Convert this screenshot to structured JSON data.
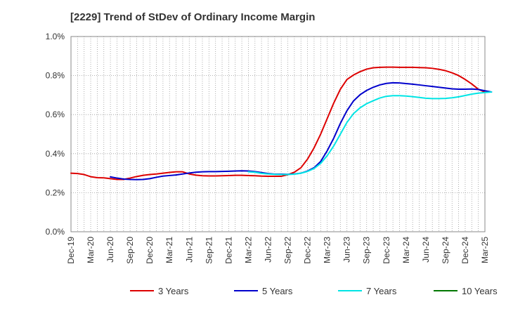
{
  "chart_data": {
    "type": "line",
    "title": "[2229]  Trend of StDev of Ordinary Income Margin",
    "xlabel": "",
    "ylabel": "",
    "ylim": [
      0,
      1.0
    ],
    "y_ticks": [
      "0.0%",
      "0.2%",
      "0.4%",
      "0.6%",
      "0.8%",
      "1.0%"
    ],
    "x_ticks": [
      "Dec-19",
      "Mar-20",
      "Jun-20",
      "Sep-20",
      "Dec-20",
      "Mar-21",
      "Jun-21",
      "Sep-21",
      "Dec-21",
      "Mar-22",
      "Jun-22",
      "Sep-22",
      "Dec-22",
      "Mar-23",
      "Jun-23",
      "Sep-23",
      "Dec-23",
      "Mar-24",
      "Jun-24",
      "Sep-24",
      "Dec-24",
      "Mar-25"
    ],
    "x_unit": "months since Dec-19",
    "grid": true,
    "legend_position": "bottom",
    "series": [
      {
        "name": "3 Years",
        "color": "#dd0000",
        "points": [
          [
            0,
            0.3
          ],
          [
            1,
            0.298
          ],
          [
            2,
            0.293
          ],
          [
            3,
            0.282
          ],
          [
            4,
            0.277
          ],
          [
            5,
            0.276
          ],
          [
            6,
            0.272
          ],
          [
            7,
            0.268
          ],
          [
            8,
            0.268
          ],
          [
            9,
            0.275
          ],
          [
            10,
            0.283
          ],
          [
            11,
            0.289
          ],
          [
            12,
            0.293
          ],
          [
            13,
            0.296
          ],
          [
            14,
            0.3
          ],
          [
            15,
            0.304
          ],
          [
            16,
            0.307
          ],
          [
            17,
            0.307
          ],
          [
            18,
            0.296
          ],
          [
            19,
            0.29
          ],
          [
            20,
            0.287
          ],
          [
            21,
            0.286
          ],
          [
            22,
            0.286
          ],
          [
            23,
            0.287
          ],
          [
            24,
            0.288
          ],
          [
            25,
            0.289
          ],
          [
            26,
            0.289
          ],
          [
            27,
            0.288
          ],
          [
            28,
            0.287
          ],
          [
            29,
            0.285
          ],
          [
            30,
            0.284
          ],
          [
            31,
            0.284
          ],
          [
            32,
            0.284
          ],
          [
            33,
            0.292
          ],
          [
            34,
            0.305
          ],
          [
            35,
            0.328
          ],
          [
            36,
            0.372
          ],
          [
            37,
            0.43
          ],
          [
            38,
            0.5
          ],
          [
            39,
            0.58
          ],
          [
            40,
            0.66
          ],
          [
            41,
            0.73
          ],
          [
            42,
            0.78
          ],
          [
            43,
            0.803
          ],
          [
            44,
            0.82
          ],
          [
            45,
            0.833
          ],
          [
            46,
            0.84
          ],
          [
            47,
            0.842
          ],
          [
            48,
            0.843
          ],
          [
            49,
            0.843
          ],
          [
            50,
            0.842
          ],
          [
            51,
            0.842
          ],
          [
            52,
            0.842
          ],
          [
            53,
            0.841
          ],
          [
            54,
            0.84
          ],
          [
            55,
            0.837
          ],
          [
            56,
            0.832
          ],
          [
            57,
            0.825
          ],
          [
            58,
            0.814
          ],
          [
            59,
            0.8
          ],
          [
            60,
            0.78
          ],
          [
            61,
            0.757
          ],
          [
            62,
            0.73
          ],
          [
            63,
            0.715
          ]
        ]
      },
      {
        "name": "5 Years",
        "color": "#0000cc",
        "points": [
          [
            6,
            0.281
          ],
          [
            7,
            0.275
          ],
          [
            8,
            0.27
          ],
          [
            9,
            0.268
          ],
          [
            10,
            0.267
          ],
          [
            11,
            0.268
          ],
          [
            12,
            0.272
          ],
          [
            13,
            0.279
          ],
          [
            14,
            0.285
          ],
          [
            15,
            0.288
          ],
          [
            16,
            0.291
          ],
          [
            17,
            0.296
          ],
          [
            18,
            0.301
          ],
          [
            19,
            0.305
          ],
          [
            20,
            0.307
          ],
          [
            21,
            0.308
          ],
          [
            22,
            0.308
          ],
          [
            23,
            0.309
          ],
          [
            24,
            0.31
          ],
          [
            25,
            0.311
          ],
          [
            26,
            0.312
          ],
          [
            27,
            0.311
          ],
          [
            28,
            0.308
          ],
          [
            29,
            0.303
          ],
          [
            30,
            0.298
          ],
          [
            31,
            0.295
          ],
          [
            32,
            0.295
          ],
          [
            33,
            0.294
          ],
          [
            34,
            0.296
          ],
          [
            35,
            0.3
          ],
          [
            36,
            0.311
          ],
          [
            37,
            0.328
          ],
          [
            38,
            0.36
          ],
          [
            39,
            0.415
          ],
          [
            40,
            0.48
          ],
          [
            41,
            0.555
          ],
          [
            42,
            0.62
          ],
          [
            43,
            0.67
          ],
          [
            44,
            0.702
          ],
          [
            45,
            0.724
          ],
          [
            46,
            0.74
          ],
          [
            47,
            0.752
          ],
          [
            48,
            0.76
          ],
          [
            49,
            0.763
          ],
          [
            50,
            0.762
          ],
          [
            51,
            0.759
          ],
          [
            52,
            0.756
          ],
          [
            53,
            0.752
          ],
          [
            54,
            0.748
          ],
          [
            55,
            0.744
          ],
          [
            56,
            0.74
          ],
          [
            57,
            0.736
          ],
          [
            58,
            0.732
          ],
          [
            59,
            0.73
          ],
          [
            60,
            0.73
          ],
          [
            61,
            0.731
          ],
          [
            62,
            0.729
          ],
          [
            63,
            0.722
          ],
          [
            64,
            0.716
          ]
        ]
      },
      {
        "name": "7 Years",
        "color": "#00e5e5",
        "points": [
          [
            27,
            0.307
          ],
          [
            28,
            0.305
          ],
          [
            29,
            0.299
          ],
          [
            30,
            0.296
          ],
          [
            31,
            0.294
          ],
          [
            32,
            0.293
          ],
          [
            33,
            0.293
          ],
          [
            34,
            0.295
          ],
          [
            35,
            0.3
          ],
          [
            36,
            0.309
          ],
          [
            37,
            0.324
          ],
          [
            38,
            0.35
          ],
          [
            39,
            0.39
          ],
          [
            40,
            0.44
          ],
          [
            41,
            0.5
          ],
          [
            42,
            0.56
          ],
          [
            43,
            0.605
          ],
          [
            44,
            0.635
          ],
          [
            45,
            0.656
          ],
          [
            46,
            0.671
          ],
          [
            47,
            0.685
          ],
          [
            48,
            0.694
          ],
          [
            49,
            0.697
          ],
          [
            50,
            0.697
          ],
          [
            51,
            0.695
          ],
          [
            52,
            0.692
          ],
          [
            53,
            0.688
          ],
          [
            54,
            0.684
          ],
          [
            55,
            0.682
          ],
          [
            56,
            0.682
          ],
          [
            57,
            0.683
          ],
          [
            58,
            0.686
          ],
          [
            59,
            0.691
          ],
          [
            60,
            0.698
          ],
          [
            61,
            0.705
          ],
          [
            62,
            0.71
          ],
          [
            63,
            0.713
          ],
          [
            64,
            0.716
          ]
        ]
      },
      {
        "name": "10 Years",
        "color": "#007700",
        "points": []
      }
    ]
  }
}
